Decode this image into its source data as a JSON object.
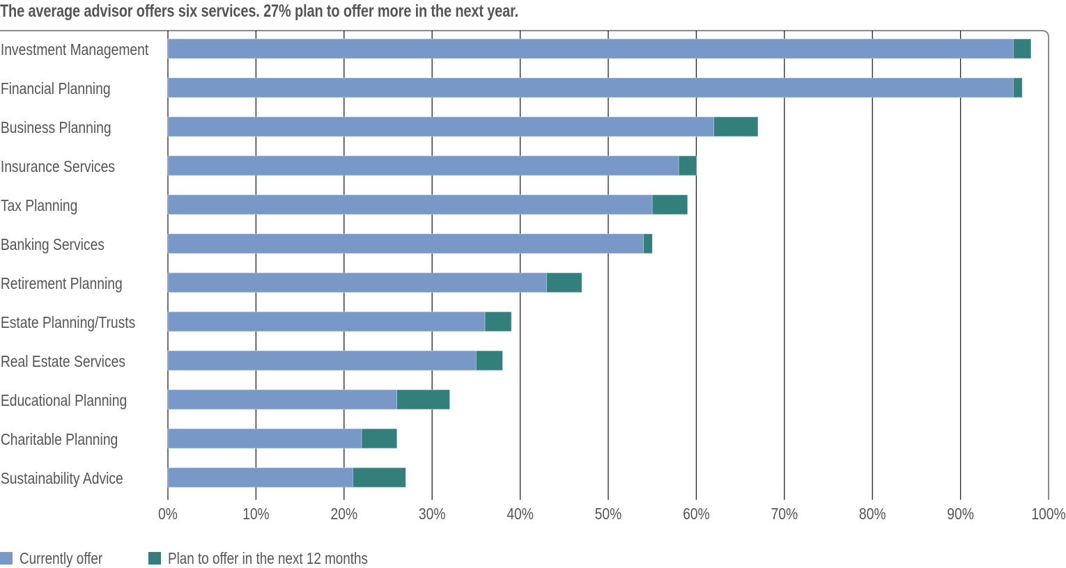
{
  "chart_data": {
    "type": "bar",
    "orientation": "horizontal",
    "stacked": true,
    "title": "The average advisor offers six services. 27% plan to offer more in the next year.",
    "categories": [
      "Investment Management",
      "Financial Planning",
      "Business Planning",
      "Insurance Services",
      "Tax Planning",
      "Banking Services",
      "Retirement Planning",
      "Estate Planning/Trusts",
      "Real Estate Services",
      "Educational Planning",
      "Charitable Planning",
      "Sustainability Advice"
    ],
    "series": [
      {
        "name": "Currently offer",
        "color": "#7898c8",
        "values": [
          96,
          96,
          62,
          58,
          55,
          54,
          43,
          36,
          35,
          26,
          22,
          21
        ]
      },
      {
        "name": "Plan to offer in the next 12 months",
        "color": "#337f7c",
        "values": [
          2,
          1,
          5,
          2,
          4,
          1,
          4,
          3,
          3,
          6,
          4,
          6
        ]
      }
    ],
    "xlim": [
      0,
      100
    ],
    "xticks": [
      0,
      10,
      20,
      30,
      40,
      50,
      60,
      70,
      80,
      90,
      100
    ],
    "xtick_labels": [
      "0%",
      "10%",
      "20%",
      "30%",
      "40%",
      "50%",
      "60%",
      "70%",
      "80%",
      "90%",
      "100%"
    ],
    "xlabel": "",
    "ylabel": "",
    "grid": true,
    "legend_position": "bottom-left"
  }
}
